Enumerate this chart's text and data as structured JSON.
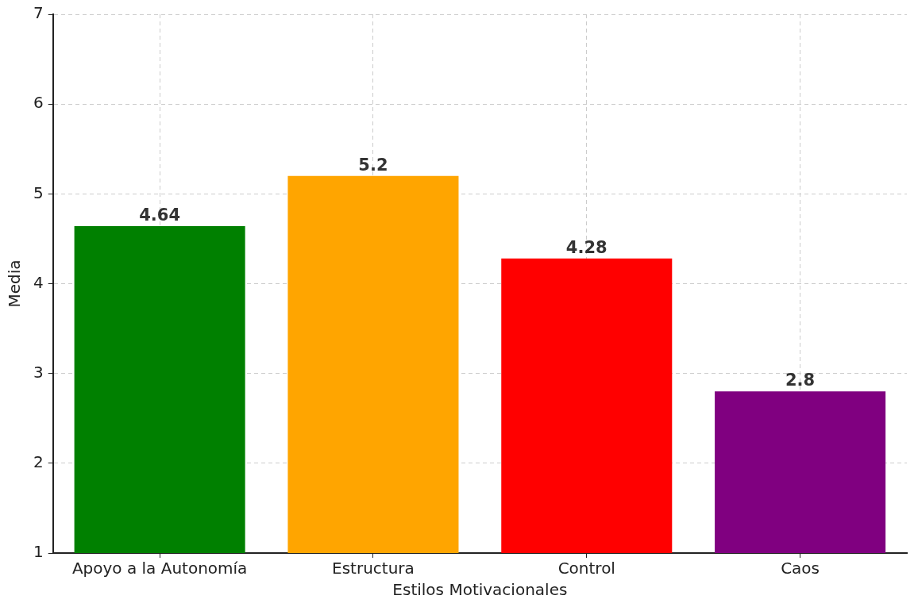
{
  "chart_data": {
    "type": "bar",
    "xlabel": "Estilos Motivacionales",
    "ylabel": "Media",
    "categories": [
      "Apoyo a la Autonomía",
      "Estructura",
      "Control",
      "Caos"
    ],
    "values": [
      4.64,
      5.2,
      4.28,
      2.8
    ],
    "colors": [
      "#008000",
      "#ffa500",
      "#ff0000",
      "#800080"
    ],
    "ylim": [
      1,
      7
    ],
    "yticks": [
      1,
      2,
      3,
      4,
      5,
      6,
      7
    ],
    "grid": true,
    "data_labels": true,
    "legend": false
  }
}
